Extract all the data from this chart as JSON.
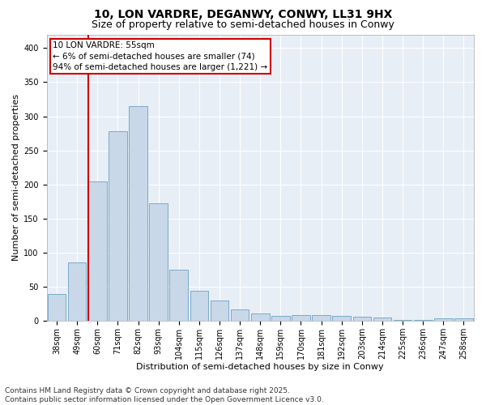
{
  "title1": "10, LON VARDRE, DEGANWY, CONWY, LL31 9HX",
  "title2": "Size of property relative to semi-detached houses in Conwy",
  "xlabel": "Distribution of semi-detached houses by size in Conwy",
  "ylabel": "Number of semi-detached properties",
  "bar_color": "#c8d8e8",
  "bar_edge_color": "#7aaac8",
  "annotation_line_color": "#cc0000",
  "annotation_box_color": "#cc0000",
  "annotation_line1": "10 LON VARDRE: 55sqm",
  "annotation_line2": "← 6% of semi-detached houses are smaller (74)",
  "annotation_line3": "94% of semi-detached houses are larger (1,221) →",
  "categories": [
    "38sqm",
    "49sqm",
    "60sqm",
    "71sqm",
    "82sqm",
    "93sqm",
    "104sqm",
    "115sqm",
    "126sqm",
    "137sqm",
    "148sqm",
    "159sqm",
    "170sqm",
    "181sqm",
    "192sqm",
    "203sqm",
    "214sqm",
    "225sqm",
    "236sqm",
    "247sqm",
    "258sqm"
  ],
  "bin_starts": [
    38,
    49,
    60,
    71,
    82,
    93,
    104,
    115,
    126,
    137,
    148,
    159,
    170,
    181,
    192,
    203,
    214,
    225,
    236,
    247,
    258
  ],
  "values": [
    40,
    86,
    205,
    278,
    315,
    172,
    75,
    44,
    30,
    17,
    11,
    7,
    8,
    8,
    7,
    6,
    5,
    2,
    1,
    4,
    4
  ],
  "property_sqm": 55,
  "property_bin_index": 1,
  "ylim": [
    0,
    420
  ],
  "yticks": [
    0,
    50,
    100,
    150,
    200,
    250,
    300,
    350,
    400
  ],
  "plot_bg_color": "#e8eef5",
  "grid_color": "#ffffff",
  "title1_fontsize": 10,
  "title2_fontsize": 9,
  "axis_label_fontsize": 8,
  "tick_fontsize": 7,
  "annotation_fontsize": 7.5,
  "footnote_fontsize": 6.5,
  "footnote": "Contains HM Land Registry data © Crown copyright and database right 2025.\nContains public sector information licensed under the Open Government Licence v3.0."
}
